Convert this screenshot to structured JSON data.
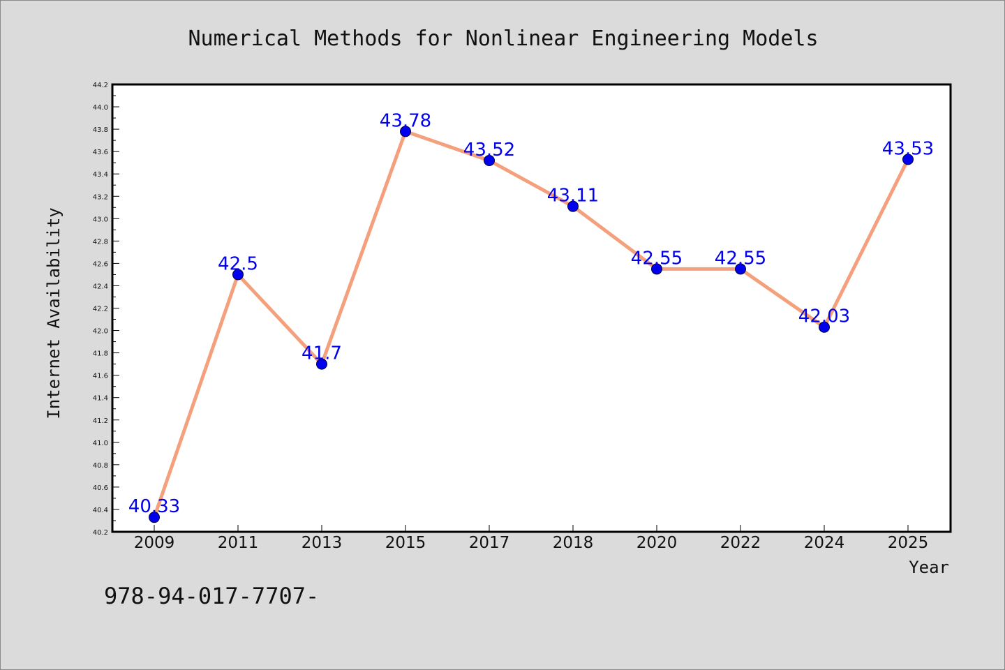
{
  "chart_data": {
    "type": "line",
    "title": "Numerical Methods for Nonlinear Engineering Models",
    "xlabel": "Year",
    "ylabel": "Internet Availability",
    "categories": [
      "2009",
      "2011",
      "2013",
      "2015",
      "2017",
      "2018",
      "2020",
      "2022",
      "2024",
      "2025"
    ],
    "series": [
      {
        "values": [
          40.33,
          42.5,
          41.7,
          43.78,
          43.52,
          43.11,
          42.55,
          42.55,
          42.03,
          43.53
        ],
        "labels": [
          "40.33",
          "42.5",
          "41.7",
          "43.78",
          "43.52",
          "43.11",
          "42.55",
          "42.55",
          "42.03",
          "43.53"
        ],
        "line_color": "#f4a07c",
        "marker_color": "#0000ee",
        "label_color": "#0000ee"
      }
    ],
    "ylim": [
      40.2,
      44.2
    ],
    "yticks": [
      "40.2",
      "40.4",
      "40.6",
      "40.8",
      "41.0",
      "41.2",
      "41.4",
      "41.6",
      "41.8",
      "42.0",
      "42.2",
      "42.4",
      "42.6",
      "42.8",
      "43.0",
      "43.2",
      "43.4",
      "43.6",
      "43.8",
      "44.0",
      "44.2"
    ],
    "grid": false,
    "legend": "none"
  },
  "footer_text": "978-94-017-7707-",
  "colors": {
    "background": "#dbdbdb",
    "plot_background": "#ffffff",
    "axis": "#000000"
  }
}
